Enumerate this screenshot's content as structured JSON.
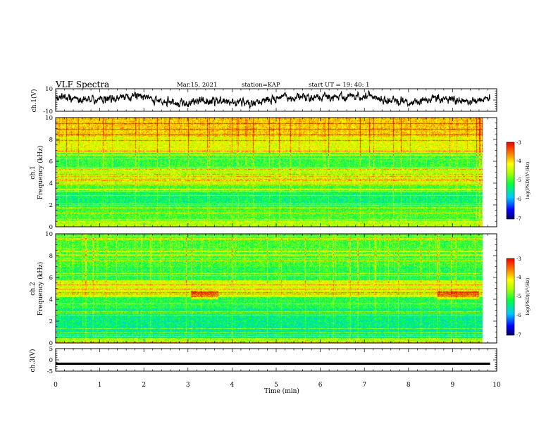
{
  "header": {
    "title": "VLF Spectra",
    "date": "Mar.15, 2021",
    "station": "station=KAP",
    "start": "start  UT =   19: 40: 1"
  },
  "chart_data": [
    {
      "type": "line",
      "name": "ch1-waveform",
      "ylabel": "ch.1(V)",
      "xlim": [
        0,
        10
      ],
      "ylim": [
        -10,
        10
      ],
      "yticks": [
        "10",
        "-10"
      ],
      "note_values": "noisy waveform, roughly between -9 and +8 V, data ends at ~9.85 min"
    },
    {
      "type": "heatmap",
      "name": "ch1-spectrogram",
      "ylabel": "Frequency (kHz)",
      "channel_label": "ch.1",
      "xlim": [
        0,
        10
      ],
      "ylim": [
        0,
        10
      ],
      "yticks": [
        "0",
        "2",
        "4",
        "6",
        "8",
        "10"
      ],
      "data_end_min": 9.85,
      "colorbar": {
        "label": "log(PSD)(V²/Hz)",
        "range": [
          -7,
          -3
        ],
        "ticks": [
          "-3",
          "-4",
          "-5",
          "-6",
          "-7"
        ]
      }
    },
    {
      "type": "heatmap",
      "name": "ch2-spectrogram",
      "ylabel": "Frequency (kHz)",
      "channel_label": "ch.2",
      "xlim": [
        0,
        10
      ],
      "ylim": [
        0,
        10
      ],
      "yticks": [
        "0",
        "2",
        "4",
        "6",
        "8",
        "10"
      ],
      "data_end_min": 9.85,
      "colorbar": {
        "label": "log(PSD)(V²/Hz)",
        "range": [
          -7,
          -3
        ],
        "ticks": [
          "-3",
          "-4",
          "-5",
          "-6",
          "-7"
        ]
      }
    },
    {
      "type": "line",
      "name": "ch3-signal",
      "ylabel": "ch.3(V)",
      "xlim": [
        0,
        10
      ],
      "ylim": [
        -5,
        5
      ],
      "yticks": [
        "5",
        "0",
        "-5"
      ],
      "values_note": "near-constant level around -1.7 V with small noise"
    }
  ],
  "xaxis": {
    "label": "Time (min)",
    "ticks": [
      "0",
      "1",
      "2",
      "3",
      "4",
      "5",
      "6",
      "7",
      "8",
      "9",
      "10"
    ]
  }
}
